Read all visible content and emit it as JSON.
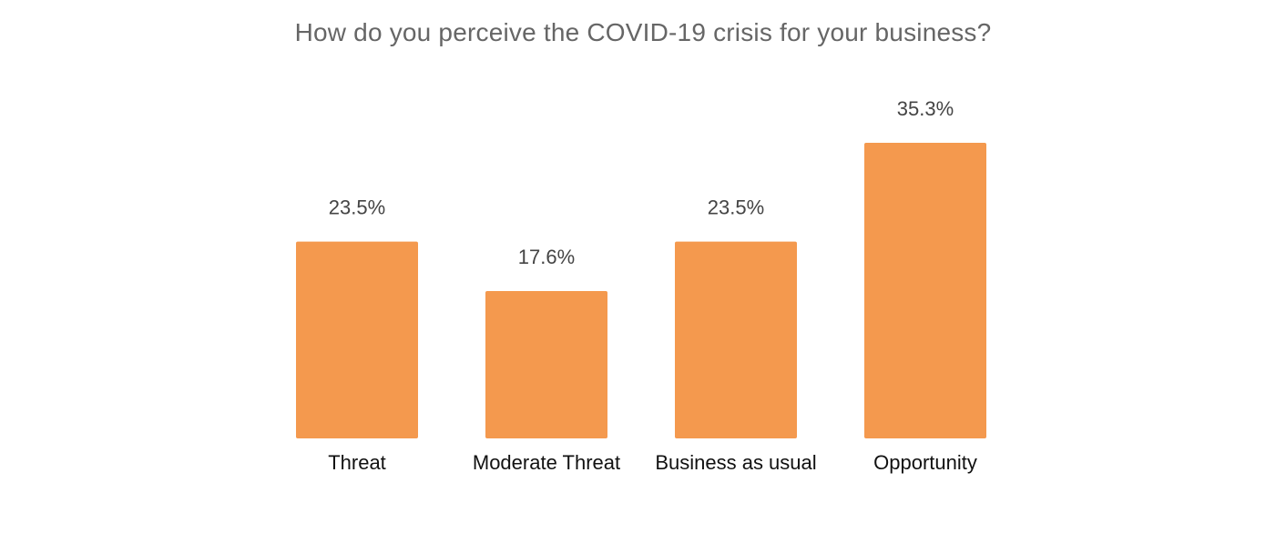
{
  "chart_data": {
    "type": "bar",
    "title": "How do you perceive the COVID-19 crisis for your business?",
    "categories": [
      "Threat",
      "Moderate Threat",
      "Business as usual",
      "Opportunity"
    ],
    "values": [
      23.5,
      17.6,
      23.5,
      35.3
    ],
    "value_labels": [
      "23.5%",
      "17.6%",
      "23.5%",
      "35.3%"
    ],
    "xlabel": "",
    "ylabel": "",
    "ylim": [
      0,
      35.3
    ],
    "grid": false,
    "legend": "none",
    "bar_color": "#F4994E"
  }
}
